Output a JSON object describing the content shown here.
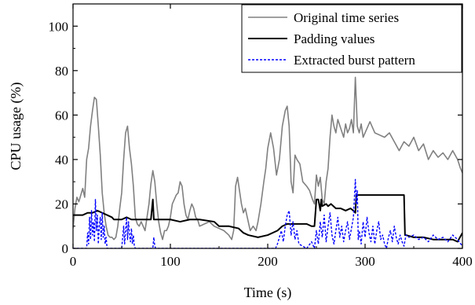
{
  "chart_data": {
    "type": "line",
    "title": "",
    "xlabel": "Time (s)",
    "ylabel": "CPU usage (%)",
    "xlim": [
      0,
      400
    ],
    "ylim": [
      0,
      110
    ],
    "xticks": [
      0,
      100,
      200,
      300,
      400
    ],
    "yticks": [
      0,
      20,
      40,
      60,
      80,
      100
    ],
    "grid": false,
    "legend_position": "top-right",
    "series": [
      {
        "name": "Original time series",
        "color": "#808080",
        "style": "solid",
        "x": [
          0,
          2,
          4,
          6,
          8,
          10,
          12,
          14,
          16,
          18,
          20,
          22,
          24,
          26,
          28,
          30,
          32,
          34,
          36,
          38,
          40,
          42,
          44,
          46,
          48,
          50,
          52,
          54,
          56,
          58,
          60,
          62,
          64,
          66,
          68,
          70,
          72,
          74,
          76,
          78,
          80,
          82,
          84,
          86,
          88,
          90,
          92,
          94,
          96,
          98,
          100,
          102,
          104,
          106,
          108,
          110,
          112,
          114,
          116,
          118,
          120,
          122,
          124,
          126,
          128,
          130,
          135,
          140,
          145,
          150,
          155,
          160,
          163,
          165,
          167,
          169,
          171,
          173,
          175,
          177,
          180,
          182,
          185,
          188,
          190,
          193,
          196,
          198,
          200,
          203,
          206,
          209,
          212,
          215,
          218,
          220,
          222,
          224,
          226,
          228,
          230,
          233,
          236,
          240,
          243,
          246,
          248,
          250,
          252,
          254,
          256,
          258,
          260,
          262,
          264,
          266,
          268,
          270,
          272,
          275,
          278,
          280,
          282,
          284,
          286,
          288,
          290,
          292,
          294,
          296,
          298,
          300,
          305,
          310,
          315,
          320,
          325,
          330,
          335,
          340,
          345,
          350,
          355,
          360,
          365,
          370,
          375,
          380,
          385,
          390,
          395,
          398,
          400
        ],
        "y": [
          9,
          18,
          23,
          21,
          24,
          27,
          23,
          40,
          45,
          55,
          62,
          68,
          67,
          55,
          42,
          25,
          16,
          10,
          6,
          5,
          5,
          4,
          5,
          10,
          18,
          25,
          40,
          52,
          55,
          45,
          38,
          28,
          14,
          11,
          10,
          12,
          10,
          8,
          14,
          20,
          29,
          35,
          30,
          20,
          12,
          7,
          4,
          8,
          8,
          10,
          14,
          20,
          22,
          24,
          25,
          30,
          28,
          20,
          15,
          13,
          17,
          20,
          18,
          14,
          13,
          10,
          11,
          12,
          10,
          9,
          8,
          6,
          4,
          8,
          28,
          32,
          26,
          20,
          16,
          18,
          12,
          8,
          10,
          8,
          12,
          20,
          30,
          36,
          45,
          52,
          45,
          33,
          40,
          55,
          62,
          64,
          55,
          30,
          25,
          42,
          40,
          38,
          30,
          28,
          26,
          22,
          20,
          33,
          28,
          32,
          22,
          20,
          30,
          36,
          50,
          60,
          55,
          52,
          58,
          54,
          50,
          56,
          52,
          54,
          58,
          52,
          77,
          55,
          52,
          56,
          50,
          52,
          57,
          52,
          51,
          50,
          52,
          48,
          44,
          48,
          46,
          50,
          44,
          47,
          40,
          44,
          41,
          43,
          40,
          44,
          40,
          36,
          34
        ]
      },
      {
        "name": "Padding values",
        "color": "#000000",
        "style": "solid",
        "x": [
          0,
          10,
          15,
          20,
          25,
          30,
          35,
          40,
          42,
          50,
          55,
          60,
          65,
          70,
          75,
          80,
          82,
          83,
          85,
          100,
          110,
          120,
          130,
          145,
          150,
          160,
          170,
          175,
          180,
          190,
          200,
          210,
          215,
          220,
          240,
          245,
          248,
          250,
          252,
          254,
          255,
          256,
          260,
          262,
          265,
          270,
          275,
          280,
          285,
          288,
          290,
          291,
          292,
          300,
          310,
          320,
          330,
          340,
          341,
          342,
          350,
          360,
          370,
          380,
          390,
          395,
          400
        ],
        "y": [
          15,
          15,
          16,
          16,
          17,
          16,
          15,
          14,
          13,
          13,
          14,
          13,
          13,
          13,
          13,
          13,
          22,
          13,
          13,
          13,
          12,
          13,
          13,
          12,
          10,
          10,
          9,
          7,
          6,
          5,
          6,
          8,
          10,
          11,
          11,
          10,
          10,
          22,
          22,
          17,
          22,
          19,
          20,
          19,
          20,
          18,
          18,
          17,
          18,
          17,
          16,
          24,
          24,
          24,
          24,
          24,
          24,
          24,
          6,
          6,
          5,
          5,
          4,
          4,
          4,
          3,
          7
        ]
      },
      {
        "name": "Extracted burst pattern",
        "color": "#0000ff",
        "style": "dashed",
        "x": [
          0,
          14,
          15,
          16,
          17,
          18,
          19,
          20,
          21,
          22,
          23,
          24,
          25,
          26,
          27,
          28,
          29,
          30,
          31,
          32,
          33,
          34,
          35,
          50,
          51,
          52,
          53,
          54,
          55,
          56,
          57,
          58,
          59,
          60,
          61,
          62,
          63,
          64,
          82,
          83,
          84,
          85,
          208,
          210,
          212,
          214,
          216,
          218,
          220,
          222,
          224,
          226,
          228,
          230,
          232,
          240,
          245,
          248,
          250,
          252,
          254,
          256,
          258,
          260,
          262,
          264,
          266,
          268,
          270,
          272,
          274,
          276,
          278,
          280,
          282,
          284,
          286,
          288,
          290,
          291,
          292,
          293,
          294,
          296,
          298,
          300,
          302,
          304,
          306,
          308,
          310,
          312,
          314,
          316,
          318,
          320,
          322,
          324,
          326,
          328,
          330,
          332,
          334,
          336,
          338,
          340,
          342,
          345,
          350,
          355,
          360,
          365,
          370,
          375,
          380,
          385,
          390,
          395,
          400
        ],
        "y": [
          0,
          0,
          7,
          2,
          14,
          4,
          17,
          6,
          12,
          3,
          22,
          8,
          15,
          2,
          10,
          14,
          4,
          16,
          5,
          10,
          2,
          5,
          0,
          0,
          5,
          10,
          2,
          8,
          14,
          4,
          12,
          6,
          3,
          9,
          2,
          6,
          1,
          0,
          0,
          5,
          1,
          0,
          0,
          2,
          5,
          8,
          3,
          10,
          15,
          17,
          6,
          12,
          4,
          8,
          2,
          0,
          3,
          0,
          8,
          2,
          12,
          5,
          15,
          3,
          10,
          16,
          6,
          2,
          8,
          14,
          5,
          10,
          3,
          8,
          12,
          4,
          9,
          14,
          31,
          20,
          26,
          4,
          8,
          2,
          12,
          5,
          14,
          7,
          3,
          10,
          2,
          8,
          12,
          4,
          6,
          2,
          0,
          5,
          8,
          3,
          10,
          5,
          2,
          6,
          3,
          1,
          6,
          5,
          6,
          4,
          5,
          3,
          6,
          4,
          5,
          3,
          6,
          4,
          1
        ]
      }
    ]
  }
}
